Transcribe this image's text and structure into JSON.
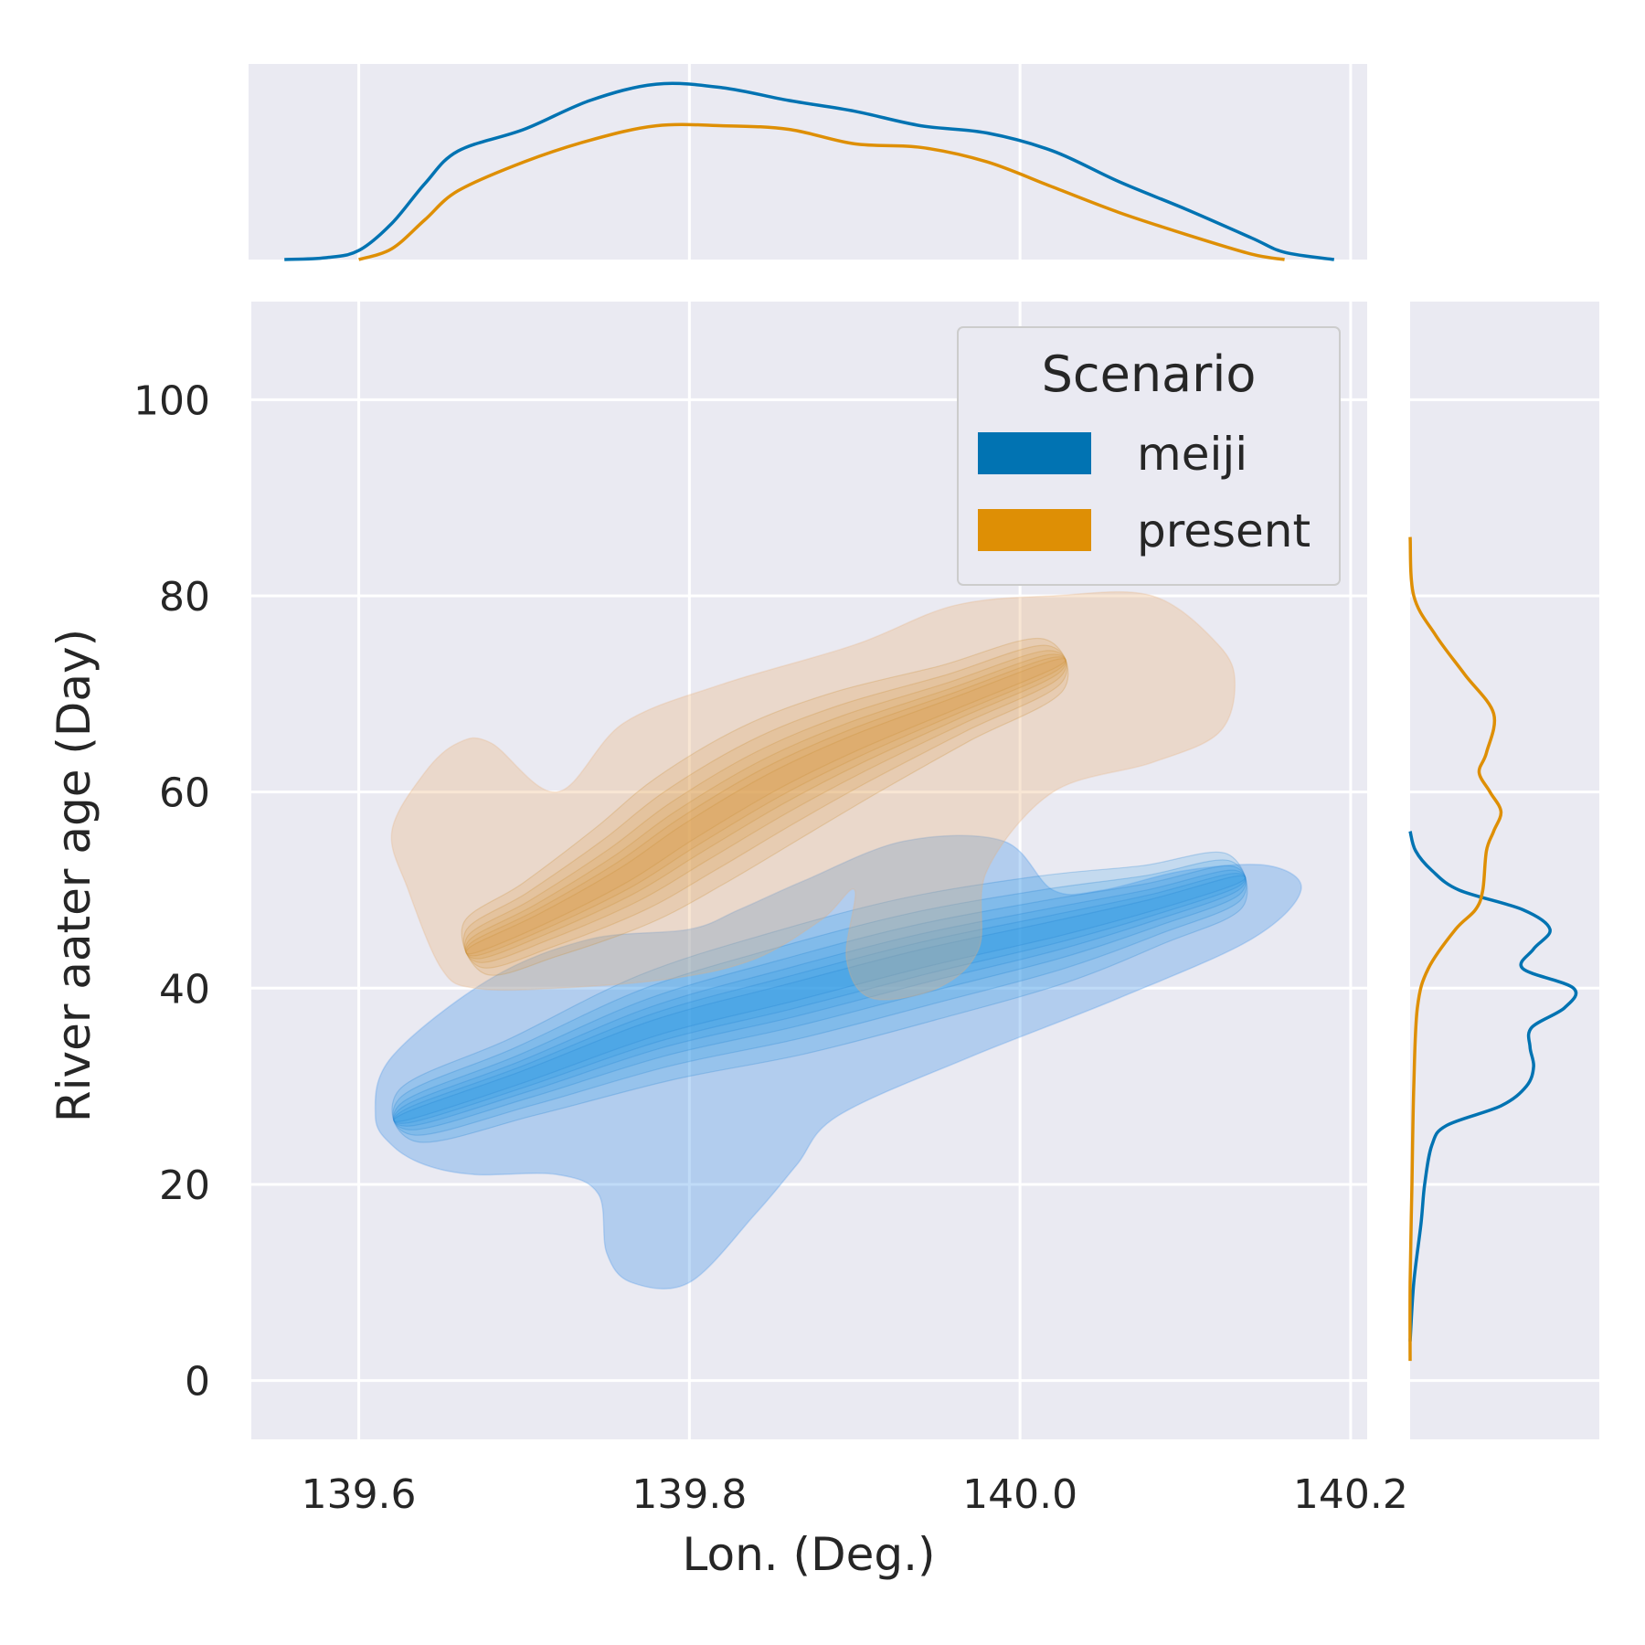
{
  "chart_data": {
    "type": "kde-joint",
    "xlabel": "Lon. (Deg.)",
    "ylabel": "River aater age (Day)",
    "xlim": [
      139.535,
      140.21
    ],
    "ylim": [
      -6,
      110
    ],
    "xticks": [
      "139.6",
      "139.8",
      "140.0",
      "140.2"
    ],
    "yticks": [
      "0",
      "20",
      "40",
      "60",
      "80",
      "100"
    ],
    "grid": true,
    "legend": {
      "title": "Scenario",
      "placement": "top-right",
      "entries": [
        {
          "label": "meiji",
          "color": "#0173b2"
        },
        {
          "label": "present",
          "color": "#de8f05"
        }
      ]
    },
    "series": [
      {
        "name": "meiji",
        "color": "#0173b2",
        "fill_color": "#3a8ee6",
        "center_line": [
          [
            139.63,
            27
          ],
          [
            139.7,
            31
          ],
          [
            139.78,
            36
          ],
          [
            139.86,
            39.5
          ],
          [
            139.94,
            43
          ],
          [
            140.02,
            46
          ],
          [
            140.08,
            48.5
          ],
          [
            140.13,
            51
          ]
        ],
        "outer_contour": [
          [
            139.61,
            27
          ],
          [
            139.62,
            24
          ],
          [
            139.64,
            22
          ],
          [
            139.67,
            21
          ],
          [
            139.72,
            21
          ],
          [
            139.745,
            19
          ],
          [
            139.75,
            13
          ],
          [
            139.765,
            10
          ],
          [
            139.8,
            10
          ],
          [
            139.84,
            17
          ],
          [
            139.865,
            22
          ],
          [
            139.89,
            27
          ],
          [
            139.97,
            33
          ],
          [
            140.06,
            39
          ],
          [
            140.14,
            45
          ],
          [
            140.17,
            50
          ],
          [
            140.15,
            52.5
          ],
          [
            140.1,
            52
          ],
          [
            140.05,
            50
          ],
          [
            140.02,
            50
          ],
          [
            139.99,
            55
          ],
          [
            139.93,
            55
          ],
          [
            139.87,
            51
          ],
          [
            139.83,
            48
          ],
          [
            139.8,
            46
          ],
          [
            139.74,
            45
          ],
          [
            139.68,
            41
          ],
          [
            139.62,
            33
          ]
        ],
        "marginal_x": [
          [
            139.555,
            0
          ],
          [
            139.58,
            0.01
          ],
          [
            139.6,
            0.05
          ],
          [
            139.62,
            0.2
          ],
          [
            139.64,
            0.42
          ],
          [
            139.66,
            0.6
          ],
          [
            139.7,
            0.72
          ],
          [
            139.74,
            0.88
          ],
          [
            139.78,
            0.97
          ],
          [
            139.82,
            0.95
          ],
          [
            139.86,
            0.88
          ],
          [
            139.9,
            0.82
          ],
          [
            139.94,
            0.74
          ],
          [
            139.98,
            0.7
          ],
          [
            140.02,
            0.6
          ],
          [
            140.06,
            0.43
          ],
          [
            140.1,
            0.28
          ],
          [
            140.14,
            0.12
          ],
          [
            140.16,
            0.04
          ],
          [
            140.19,
            0
          ]
        ],
        "marginal_y": [
          [
            4,
            0
          ],
          [
            10,
            0.02
          ],
          [
            16,
            0.06
          ],
          [
            20,
            0.08
          ],
          [
            24,
            0.12
          ],
          [
            26,
            0.2
          ],
          [
            28,
            0.5
          ],
          [
            30,
            0.64
          ],
          [
            32,
            0.68
          ],
          [
            34,
            0.66
          ],
          [
            36,
            0.67
          ],
          [
            38,
            0.85
          ],
          [
            40,
            0.9
          ],
          [
            42,
            0.62
          ],
          [
            44,
            0.68
          ],
          [
            46,
            0.77
          ],
          [
            48,
            0.62
          ],
          [
            50,
            0.27
          ],
          [
            52,
            0.12
          ],
          [
            54,
            0.03
          ],
          [
            56,
            0
          ]
        ]
      },
      {
        "name": "present",
        "color": "#de8f05",
        "fill_color": "#e8b07a",
        "center_line": [
          [
            139.67,
            44
          ],
          [
            139.71,
            47
          ],
          [
            139.76,
            51.5
          ],
          [
            139.8,
            56
          ],
          [
            139.85,
            61
          ],
          [
            139.9,
            65
          ],
          [
            139.96,
            69
          ],
          [
            140.02,
            73
          ]
        ],
        "outer_contour": [
          [
            139.65,
            42
          ],
          [
            139.67,
            40
          ],
          [
            139.72,
            40
          ],
          [
            139.79,
            41
          ],
          [
            139.84,
            43
          ],
          [
            139.88,
            47
          ],
          [
            139.9,
            50
          ],
          [
            139.895,
            43
          ],
          [
            139.91,
            39
          ],
          [
            139.95,
            40
          ],
          [
            139.975,
            44
          ],
          [
            139.98,
            52
          ],
          [
            140.02,
            60
          ],
          [
            140.08,
            63
          ],
          [
            140.12,
            66
          ],
          [
            140.13,
            71
          ],
          [
            140.12,
            75
          ],
          [
            140.08,
            80
          ],
          [
            140.02,
            80
          ],
          [
            139.96,
            79
          ],
          [
            139.9,
            75
          ],
          [
            139.82,
            71
          ],
          [
            139.76,
            67
          ],
          [
            139.72,
            60
          ],
          [
            139.68,
            65
          ],
          [
            139.66,
            65
          ],
          [
            139.64,
            62
          ],
          [
            139.62,
            56
          ],
          [
            139.63,
            50
          ]
        ],
        "marginal_x": [
          [
            139.6,
            0
          ],
          [
            139.62,
            0.06
          ],
          [
            139.64,
            0.22
          ],
          [
            139.66,
            0.38
          ],
          [
            139.7,
            0.54
          ],
          [
            139.74,
            0.66
          ],
          [
            139.78,
            0.74
          ],
          [
            139.82,
            0.74
          ],
          [
            139.86,
            0.72
          ],
          [
            139.9,
            0.64
          ],
          [
            139.94,
            0.62
          ],
          [
            139.98,
            0.54
          ],
          [
            140.02,
            0.4
          ],
          [
            140.06,
            0.26
          ],
          [
            140.1,
            0.14
          ],
          [
            140.14,
            0.03
          ],
          [
            140.16,
            0
          ]
        ],
        "marginal_y": [
          [
            2,
            0
          ],
          [
            10,
            0
          ],
          [
            20,
            0.01
          ],
          [
            30,
            0.02
          ],
          [
            38,
            0.04
          ],
          [
            42,
            0.1
          ],
          [
            46,
            0.25
          ],
          [
            48,
            0.36
          ],
          [
            50,
            0.4
          ],
          [
            54,
            0.42
          ],
          [
            56,
            0.46
          ],
          [
            58,
            0.5
          ],
          [
            60,
            0.44
          ],
          [
            62,
            0.38
          ],
          [
            64,
            0.42
          ],
          [
            68,
            0.46
          ],
          [
            72,
            0.3
          ],
          [
            76,
            0.14
          ],
          [
            80,
            0.02
          ],
          [
            86,
            0
          ]
        ]
      }
    ]
  }
}
